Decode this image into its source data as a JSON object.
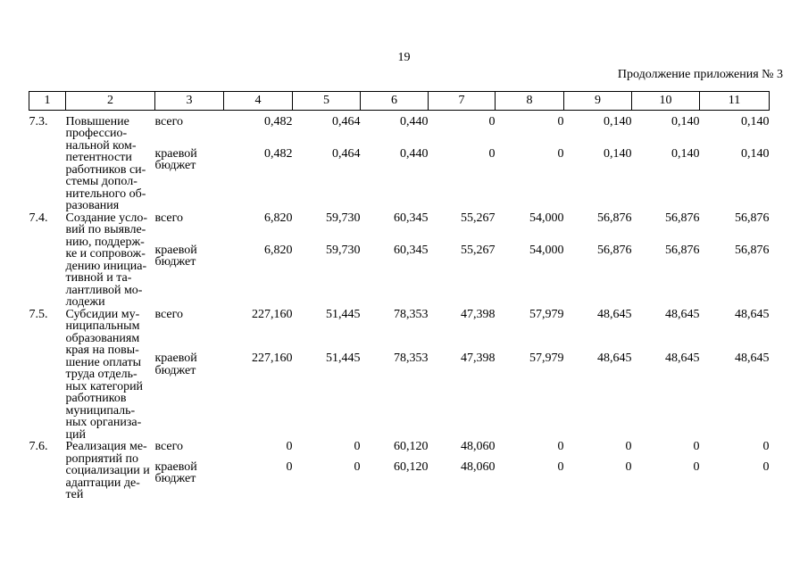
{
  "page": {
    "number": "19",
    "continuation_note": "Продолжение приложения № 3"
  },
  "table": {
    "column_headers": [
      "1",
      "2",
      "3",
      "4",
      "5",
      "6",
      "7",
      "8",
      "9",
      "10",
      "11"
    ],
    "rows": [
      {
        "num": "7.3.",
        "description_lines": [
          "Повышение",
          "профессио-",
          "нальной ком-",
          "петентности",
          "работников си-",
          "стемы допол-",
          "нительного об-",
          "разования"
        ],
        "entries": [
          {
            "source": "всего",
            "values": [
              "0,482",
              "0,464",
              "0,440",
              "0",
              "0",
              "0,140",
              "0,140",
              "0,140"
            ]
          },
          {
            "source": "краевой бюджет",
            "values": [
              "0,482",
              "0,464",
              "0,440",
              "0",
              "0",
              "0,140",
              "0,140",
              "0,140"
            ]
          }
        ]
      },
      {
        "num": "7.4.",
        "description_lines": [
          "Создание усло-",
          "вий по выявле-",
          "нию, поддерж-",
          "ке и сопровож-",
          "дению инициа-",
          "тивной и та-",
          "лантливой мо-",
          "лодежи"
        ],
        "entries": [
          {
            "source": "всего",
            "values": [
              "6,820",
              "59,730",
              "60,345",
              "55,267",
              "54,000",
              "56,876",
              "56,876",
              "56,876"
            ]
          },
          {
            "source": "краевой бюджет",
            "values": [
              "6,820",
              "59,730",
              "60,345",
              "55,267",
              "54,000",
              "56,876",
              "56,876",
              "56,876"
            ]
          }
        ]
      },
      {
        "num": "7.5.",
        "description_lines": [
          "Субсидии му-",
          "ниципальным",
          "образованиям",
          "края на повы-",
          "шение оплаты",
          "труда отдель-",
          "ных категорий",
          "работников",
          "муниципаль-",
          "ных организа-",
          "ций"
        ],
        "entries": [
          {
            "source": "всего",
            "values": [
              "227,160",
              "51,445",
              "78,353",
              "47,398",
              "57,979",
              "48,645",
              "48,645",
              "48,645"
            ]
          },
          {
            "source": "краевой бюджет",
            "values": [
              "227,160",
              "51,445",
              "78,353",
              "47,398",
              "57,979",
              "48,645",
              "48,645",
              "48,645"
            ]
          }
        ]
      },
      {
        "num": "7.6.",
        "description_lines": [
          "Реализация ме-",
          "роприятий по",
          "социализации и",
          "адаптации де-",
          "тей"
        ],
        "entries": [
          {
            "source": "всего",
            "values": [
              "0",
              "0",
              "60,120",
              "48,060",
              "0",
              "0",
              "0",
              "0"
            ]
          },
          {
            "source": "краевой бюджет",
            "values": [
              "0",
              "0",
              "60,120",
              "48,060",
              "0",
              "0",
              "0",
              "0"
            ]
          }
        ]
      }
    ]
  }
}
